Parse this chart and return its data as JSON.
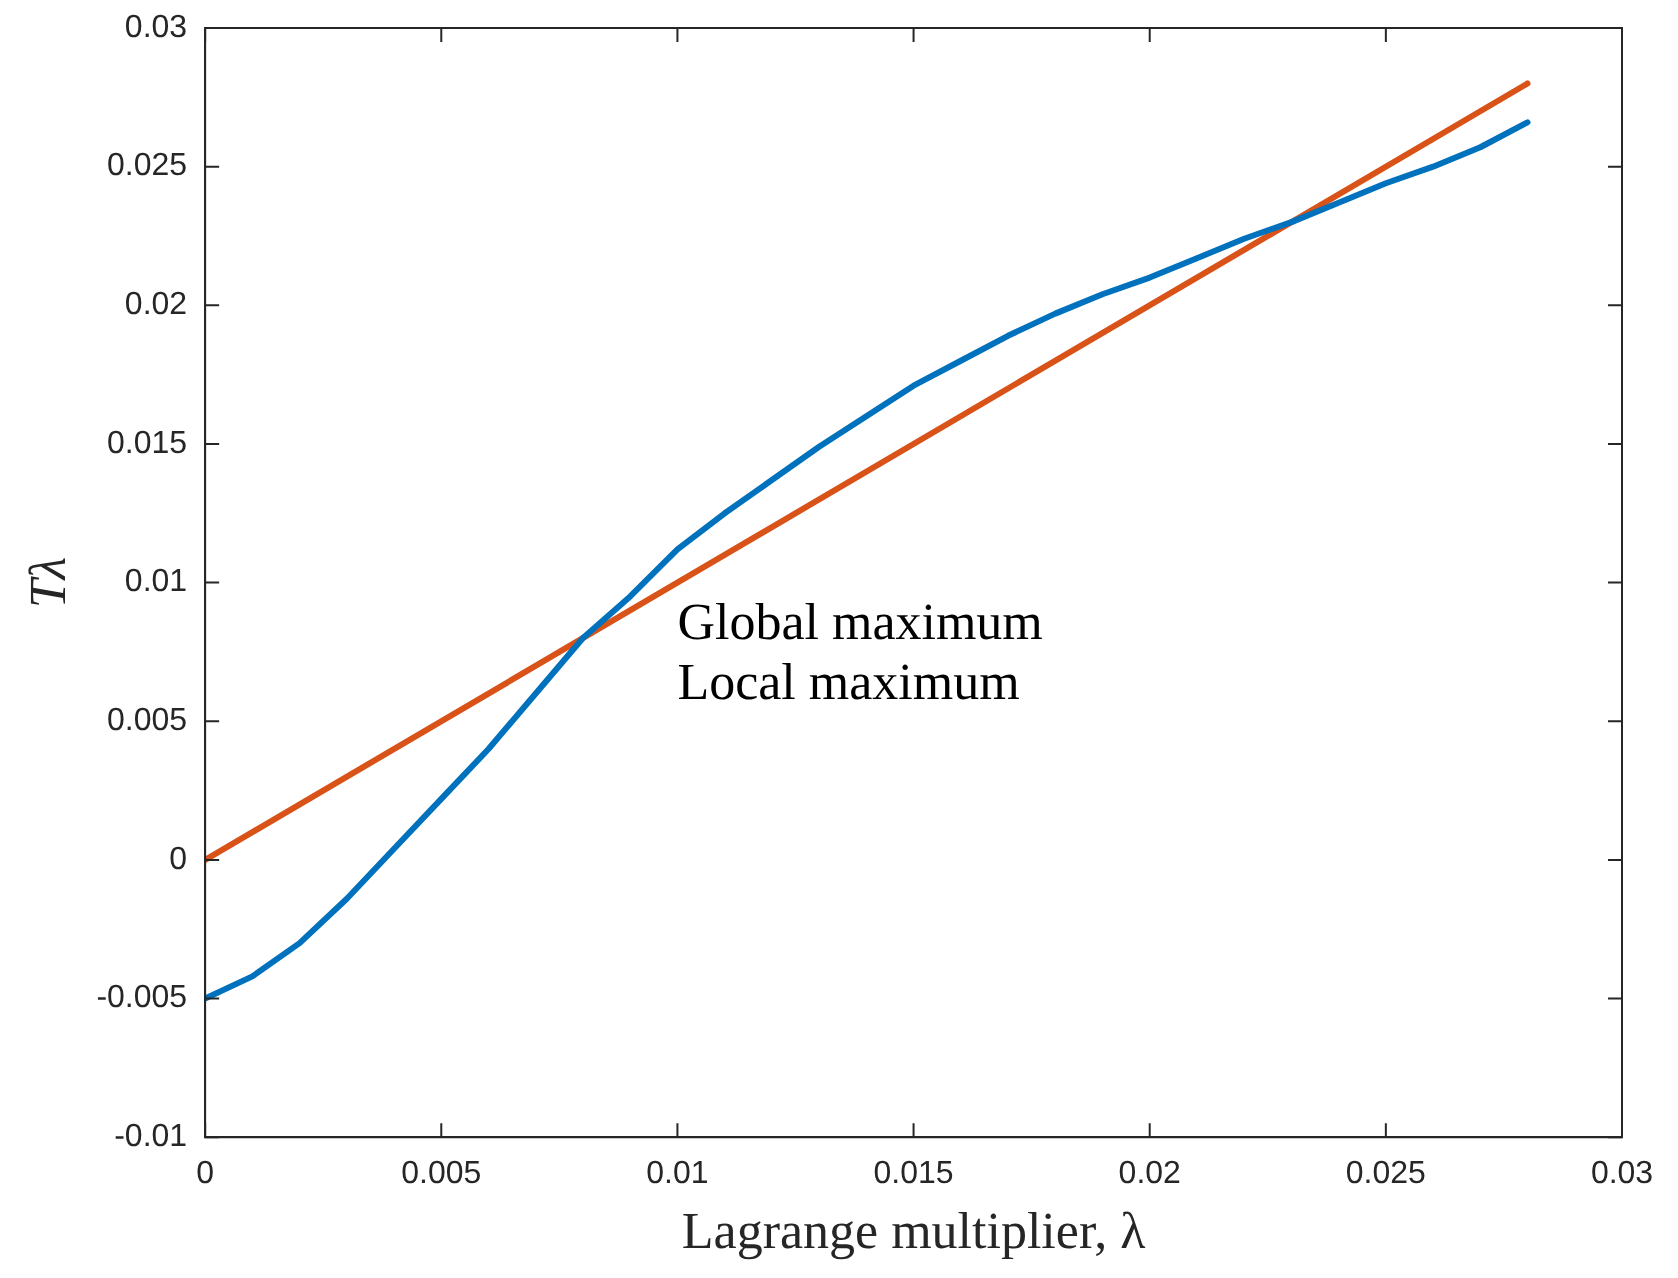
{
  "chart_data": {
    "type": "line",
    "xlabel": "Lagrange multiplier, λ",
    "ylabel": "Tλ",
    "xlim": [
      0,
      0.03
    ],
    "xticks": [
      0,
      0.005,
      0.01,
      0.015,
      0.02,
      0.025,
      0.03
    ],
    "ylim": [
      -0.01,
      0.03
    ],
    "yticks": [
      -0.01,
      -0.005,
      0,
      0.005,
      0.01,
      0.015,
      0.02,
      0.025,
      0.03
    ],
    "grid": false,
    "legend": false,
    "marker": "none",
    "line_style": "solid",
    "series": [
      {
        "color": "#0072bd",
        "x": [
          0,
          0.001,
          0.002,
          0.003,
          0.004,
          0.005,
          0.006,
          0.007,
          0.008,
          0.009,
          0.01,
          0.011,
          0.012,
          0.013,
          0.014,
          0.015,
          0.016,
          0.017,
          0.018,
          0.019,
          0.02,
          0.021,
          0.022,
          0.023,
          0.024,
          0.025,
          0.026,
          0.027,
          0.028
        ],
        "values": [
          -0.005,
          -0.0042,
          -0.003,
          -0.0014,
          0.0004,
          0.0022,
          0.004,
          0.006,
          0.008,
          0.0095,
          0.0112,
          0.0125,
          0.0137,
          0.0149,
          0.016,
          0.0171,
          0.018,
          0.0189,
          0.0197,
          0.0204,
          0.021,
          0.0217,
          0.0224,
          0.023,
          0.0237,
          0.0244,
          0.025,
          0.0257,
          0.0266
        ]
      },
      {
        "color": "#d95319",
        "x": [
          0,
          0.028
        ],
        "values": [
          0,
          0.028
        ]
      }
    ],
    "annotations": [
      {
        "text": "Global maximum",
        "x": 0.01,
        "y": 0.0097
      },
      {
        "text": "Local maximum",
        "x": 0.01,
        "y": 0.0097
      }
    ]
  }
}
